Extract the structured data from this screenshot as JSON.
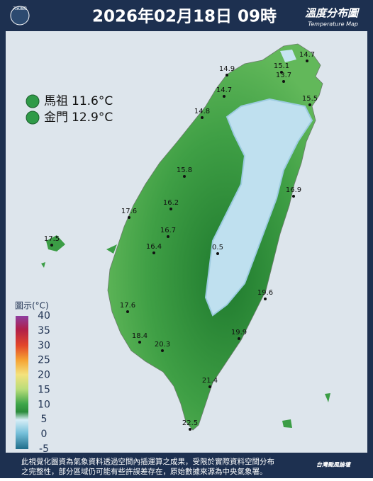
{
  "header": {
    "logo": "天氣風險",
    "title": "2026年02月18日 09時",
    "map_title": "溫度分布圖",
    "map_subtitle": "Temperature Map"
  },
  "islands": [
    {
      "name": "馬祖",
      "value": "11.6°C"
    },
    {
      "name": "金門",
      "value": "12.9°C"
    }
  ],
  "stations": [
    "14.7",
    "15.1",
    "13.7",
    "14.9",
    "14.7",
    "15.5",
    "14.8",
    "15.8",
    "16.9",
    "16.2",
    "17.6",
    "16.7",
    "17.5",
    "16.4",
    "0.5",
    "19.6",
    "17.6",
    "18.4",
    "20.3",
    "19.9",
    "21.4",
    "22.5"
  ],
  "legend": {
    "title": "圖示(°C)",
    "ticks": [
      "40",
      "35",
      "30",
      "25",
      "20",
      "15",
      "10",
      "5",
      "0",
      "-5"
    ]
  },
  "footer": {
    "note": "此視覺化圖資為氣象資料透過空間內插運算之成果，受限於實際資料空間分布之完整性，部分區域仍可能有些許誤差存在，原始數據來源為中央氣象署。",
    "brand": "台灣颱風論壇"
  }
}
